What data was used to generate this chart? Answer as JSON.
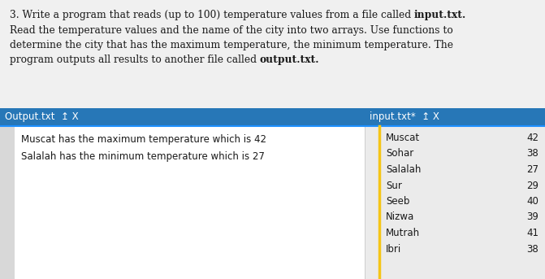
{
  "bg_color": "#f0f0f0",
  "white": "#ffffff",
  "desc_lines_normal": [
    [
      "3. Write a program that reads (up to 100) temperature values from a file called ",
      "input.txt."
    ],
    [
      "Read the temperature values and the name of the city into two arrays. Use functions to",
      ""
    ],
    [
      "determine the city that has the maximum temperature, the minimum temperature. The",
      ""
    ],
    [
      "program outputs all results to another file called ",
      "output.txt."
    ]
  ],
  "tab_color": "#2777b7",
  "tab_text_color": "#ffffff",
  "output_tab_label": "Output.txt  ↥ X",
  "input_tab_label": "input.txt*  ↥ X",
  "output_lines": [
    "Muscat has the maximum temperature which is 42",
    "Salalah has the minimum temperature which is 27"
  ],
  "input_data": [
    [
      "Muscat",
      "42"
    ],
    [
      "Sohar",
      "38"
    ],
    [
      "Salalah",
      "27"
    ],
    [
      "Sur",
      "29"
    ],
    [
      "Seeb",
      "40"
    ],
    [
      "Nizwa",
      "39"
    ],
    [
      "Mutrah",
      "41"
    ],
    [
      "Ibri",
      "38"
    ]
  ],
  "separator_color": "#f5c518",
  "desc_color": "#1a1a1a",
  "code_color": "#1a1a1a",
  "tab_underline_color": "#1e90ff",
  "grey_sidebar_color": "#d8d8d8",
  "panel_border_color": "#c8c8c8"
}
